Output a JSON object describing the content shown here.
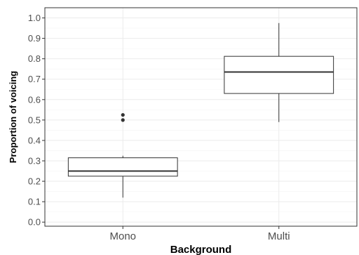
{
  "chart_data": {
    "type": "boxplot",
    "xlabel": "Background",
    "ylabel": "Proportion of voicing",
    "ylim": [
      -0.02,
      1.05
    ],
    "y_ticks": [
      0.0,
      0.1,
      0.2,
      0.3,
      0.4,
      0.5,
      0.6,
      0.7,
      0.8,
      0.9,
      1.0
    ],
    "y_tick_labels": [
      "0.0",
      "0.1",
      "0.2",
      "0.3",
      "0.4",
      "0.5",
      "0.6",
      "0.7",
      "0.8",
      "0.9",
      "1.0"
    ],
    "grid": true,
    "categories": [
      "Mono",
      "Multi"
    ],
    "boxes": [
      {
        "category": "Mono",
        "whisker_low": 0.12,
        "q1": 0.225,
        "median": 0.25,
        "q3": 0.315,
        "whisker_high": 0.325,
        "outliers": [
          0.5,
          0.525
        ]
      },
      {
        "category": "Multi",
        "whisker_low": 0.49,
        "q1": 0.63,
        "median": 0.735,
        "q3": 0.812,
        "whisker_high": 0.975,
        "outliers": []
      }
    ],
    "colors": {
      "box_fill": "#ffffff",
      "box_stroke": "#333333",
      "grid_major": "#ebebeb",
      "grid_minor": "#f5f5f5",
      "panel_border": "#333333"
    }
  }
}
